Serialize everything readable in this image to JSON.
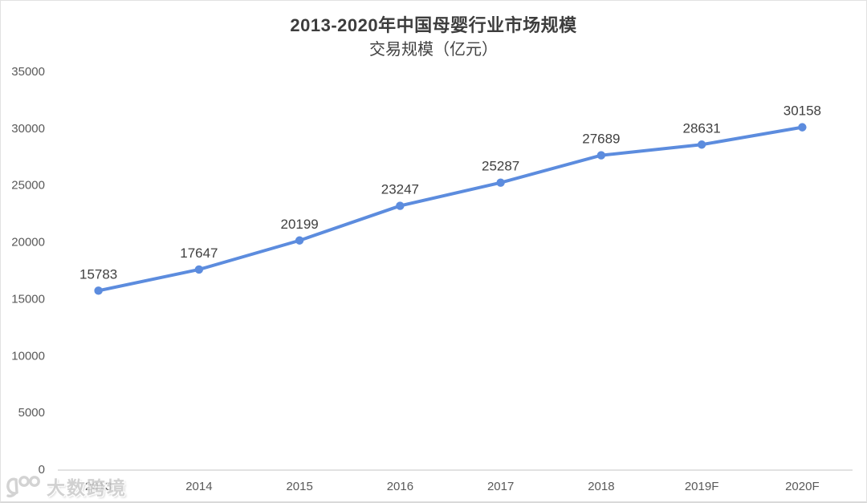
{
  "chart_data": {
    "type": "line",
    "title": "2013-2020年中国母婴行业市场规模",
    "subtitle": "交易规模（亿元）",
    "categories": [
      "2013",
      "2014",
      "2015",
      "2016",
      "2017",
      "2018",
      "2019F",
      "2020F"
    ],
    "values": [
      15783,
      17647,
      20199,
      23247,
      25287,
      27689,
      28631,
      30158
    ],
    "data_labels": [
      "15783",
      "17647",
      "20199",
      "23247",
      "25287",
      "27689",
      "28631",
      "30158"
    ],
    "ylim": [
      0,
      35000
    ],
    "yticks": [
      0,
      5000,
      10000,
      15000,
      20000,
      25000,
      30000,
      35000
    ],
    "grid": false,
    "legend": "none",
    "colors": {
      "line": "#5c8cde",
      "marker": "#5c8cde",
      "data_label": "#404040",
      "tick_label": "#595959",
      "axis_line": "#d9d9d9",
      "title": "#3d3d3d",
      "subtitle": "#424242"
    }
  },
  "watermark": {
    "logo": "brand-100-logo",
    "text": "大数跨境"
  }
}
